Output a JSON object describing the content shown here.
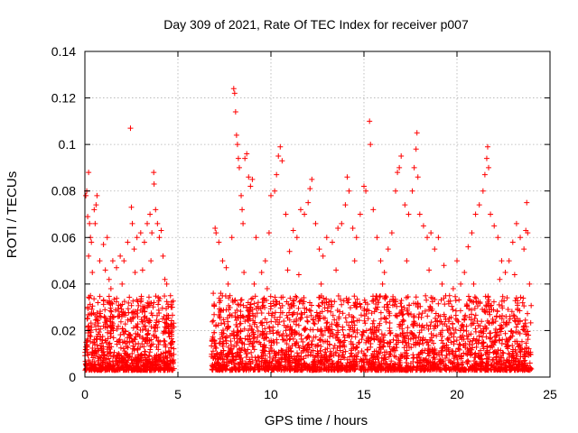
{
  "chart_data": {
    "type": "scatter",
    "title": "Day 309 of 2021, Rate Of TEC Index for receiver p007",
    "xlabel": "GPS time / hours",
    "ylabel": "ROTI / TECUs",
    "xlim": [
      0,
      25
    ],
    "ylim": [
      0,
      0.14
    ],
    "x_ticks": [
      {
        "value": 0,
        "label": "0"
      },
      {
        "value": 5,
        "label": "5"
      },
      {
        "value": 10,
        "label": "10"
      },
      {
        "value": 15,
        "label": "15"
      },
      {
        "value": 20,
        "label": "20"
      },
      {
        "value": 25,
        "label": "25"
      }
    ],
    "y_ticks": [
      {
        "value": 0,
        "label": "0"
      },
      {
        "value": 0.02,
        "label": "0.02"
      },
      {
        "value": 0.04,
        "label": "0.04"
      },
      {
        "value": 0.06,
        "label": "0.06"
      },
      {
        "value": 0.08,
        "label": "0.08"
      },
      {
        "value": 0.1,
        "label": "0.1"
      },
      {
        "value": 0.12,
        "label": "0.12"
      },
      {
        "value": 0.14,
        "label": "0.14"
      }
    ],
    "grid": true,
    "marker": "plus",
    "color": "#ff0000",
    "series": [
      {
        "points": [
          [
            0.05,
            0.078
          ],
          [
            0.1,
            0.08
          ],
          [
            0.15,
            0.069
          ],
          [
            0.2,
            0.088
          ],
          [
            0.25,
            0.066
          ],
          [
            0.3,
            0.06
          ],
          [
            0.2,
            0.052
          ],
          [
            0.35,
            0.058
          ],
          [
            0.5,
            0.072
          ],
          [
            0.55,
            0.066
          ],
          [
            0.6,
            0.074
          ],
          [
            0.65,
            0.078
          ],
          [
            0.4,
            0.045
          ],
          [
            0.8,
            0.05
          ],
          [
            1.0,
            0.057
          ],
          [
            1.2,
            0.06
          ],
          [
            1.1,
            0.046
          ],
          [
            1.5,
            0.05
          ],
          [
            1.3,
            0.042
          ],
          [
            1.7,
            0.047
          ],
          [
            1.9,
            0.052
          ],
          [
            2.1,
            0.05
          ],
          [
            2.3,
            0.058
          ],
          [
            2.45,
            0.107
          ],
          [
            2.5,
            0.073
          ],
          [
            2.55,
            0.066
          ],
          [
            2.65,
            0.055
          ],
          [
            2.8,
            0.06
          ],
          [
            3.0,
            0.062
          ],
          [
            3.2,
            0.058
          ],
          [
            3.35,
            0.066
          ],
          [
            3.5,
            0.07
          ],
          [
            3.6,
            0.062
          ],
          [
            3.7,
            0.088
          ],
          [
            3.72,
            0.083
          ],
          [
            3.8,
            0.072
          ],
          [
            3.9,
            0.066
          ],
          [
            4.0,
            0.06
          ],
          [
            4.1,
            0.063
          ],
          [
            4.2,
            0.052
          ],
          [
            4.4,
            0.04
          ],
          [
            4.6,
            0.035
          ],
          [
            0.3,
            0.035
          ],
          [
            0.7,
            0.032
          ],
          [
            1.4,
            0.038
          ],
          [
            2.0,
            0.04
          ],
          [
            2.7,
            0.045
          ],
          [
            3.1,
            0.046
          ],
          [
            3.55,
            0.05
          ],
          [
            4.3,
            0.042
          ],
          [
            4.7,
            0.03
          ],
          [
            6.9,
            0.036
          ],
          [
            7.0,
            0.064
          ],
          [
            7.05,
            0.062
          ],
          [
            7.2,
            0.058
          ],
          [
            7.4,
            0.05
          ],
          [
            7.6,
            0.047
          ],
          [
            7.7,
            0.04
          ],
          [
            7.9,
            0.06
          ],
          [
            8.0,
            0.124
          ],
          [
            8.05,
            0.122
          ],
          [
            8.1,
            0.114
          ],
          [
            8.15,
            0.104
          ],
          [
            8.2,
            0.1
          ],
          [
            8.25,
            0.094
          ],
          [
            8.3,
            0.09
          ],
          [
            8.4,
            0.078
          ],
          [
            8.45,
            0.072
          ],
          [
            8.5,
            0.066
          ],
          [
            8.6,
            0.094
          ],
          [
            8.7,
            0.096
          ],
          [
            8.8,
            0.086
          ],
          [
            8.9,
            0.082
          ],
          [
            9.0,
            0.085
          ],
          [
            9.2,
            0.06
          ],
          [
            9.5,
            0.045
          ],
          [
            9.7,
            0.05
          ],
          [
            9.9,
            0.062
          ],
          [
            10.0,
            0.078
          ],
          [
            10.2,
            0.08
          ],
          [
            10.3,
            0.087
          ],
          [
            10.4,
            0.095
          ],
          [
            10.5,
            0.099
          ],
          [
            10.6,
            0.093
          ],
          [
            10.8,
            0.07
          ],
          [
            11.0,
            0.054
          ],
          [
            11.2,
            0.063
          ],
          [
            11.4,
            0.06
          ],
          [
            11.6,
            0.072
          ],
          [
            11.8,
            0.07
          ],
          [
            12.0,
            0.075
          ],
          [
            12.1,
            0.081
          ],
          [
            12.2,
            0.085
          ],
          [
            12.4,
            0.066
          ],
          [
            12.6,
            0.055
          ],
          [
            12.8,
            0.052
          ],
          [
            13.0,
            0.06
          ],
          [
            13.3,
            0.058
          ],
          [
            13.6,
            0.064
          ],
          [
            13.8,
            0.066
          ],
          [
            14.0,
            0.074
          ],
          [
            14.1,
            0.086
          ],
          [
            14.2,
            0.08
          ],
          [
            14.4,
            0.064
          ],
          [
            14.6,
            0.06
          ],
          [
            14.8,
            0.07
          ],
          [
            15.0,
            0.082
          ],
          [
            15.1,
            0.08
          ],
          [
            15.3,
            0.11
          ],
          [
            15.35,
            0.1
          ],
          [
            15.5,
            0.072
          ],
          [
            15.7,
            0.06
          ],
          [
            15.9,
            0.05
          ],
          [
            16.1,
            0.045
          ],
          [
            16.3,
            0.055
          ],
          [
            16.5,
            0.062
          ],
          [
            16.7,
            0.08
          ],
          [
            16.8,
            0.088
          ],
          [
            16.9,
            0.09
          ],
          [
            17.0,
            0.095
          ],
          [
            17.2,
            0.074
          ],
          [
            17.4,
            0.07
          ],
          [
            17.6,
            0.08
          ],
          [
            17.7,
            0.09
          ],
          [
            17.8,
            0.098
          ],
          [
            17.85,
            0.105
          ],
          [
            17.9,
            0.086
          ],
          [
            18.0,
            0.07
          ],
          [
            18.2,
            0.065
          ],
          [
            18.4,
            0.06
          ],
          [
            18.6,
            0.062
          ],
          [
            18.8,
            0.055
          ],
          [
            19.0,
            0.06
          ],
          [
            19.3,
            0.048
          ],
          [
            19.6,
            0.035
          ],
          [
            19.8,
            0.038
          ],
          [
            20.0,
            0.05
          ],
          [
            20.2,
            0.04
          ],
          [
            20.4,
            0.045
          ],
          [
            20.6,
            0.056
          ],
          [
            20.8,
            0.062
          ],
          [
            21.0,
            0.07
          ],
          [
            21.2,
            0.074
          ],
          [
            21.4,
            0.08
          ],
          [
            21.5,
            0.087
          ],
          [
            21.6,
            0.094
          ],
          [
            21.65,
            0.099
          ],
          [
            21.7,
            0.09
          ],
          [
            21.8,
            0.07
          ],
          [
            22.0,
            0.065
          ],
          [
            22.2,
            0.06
          ],
          [
            22.4,
            0.05
          ],
          [
            22.6,
            0.045
          ],
          [
            22.8,
            0.05
          ],
          [
            23.0,
            0.058
          ],
          [
            23.2,
            0.066
          ],
          [
            23.4,
            0.06
          ],
          [
            23.6,
            0.055
          ],
          [
            23.7,
            0.063
          ],
          [
            23.75,
            0.075
          ],
          [
            23.8,
            0.062
          ],
          [
            23.9,
            0.04
          ],
          [
            7.3,
            0.036
          ],
          [
            7.8,
            0.035
          ],
          [
            8.55,
            0.045
          ],
          [
            9.1,
            0.04
          ],
          [
            9.8,
            0.038
          ],
          [
            10.9,
            0.046
          ],
          [
            11.5,
            0.044
          ],
          [
            12.7,
            0.04
          ],
          [
            13.5,
            0.046
          ],
          [
            14.5,
            0.05
          ],
          [
            16.0,
            0.04
          ],
          [
            17.3,
            0.05
          ],
          [
            18.5,
            0.046
          ],
          [
            19.2,
            0.04
          ],
          [
            20.9,
            0.04
          ],
          [
            22.3,
            0.042
          ],
          [
            23.1,
            0.044
          ]
        ]
      }
    ],
    "dense_bands": [
      {
        "x_range": [
          0,
          4.8
        ],
        "y_range": [
          0.003,
          0.035
        ],
        "count": 900
      },
      {
        "x_range": [
          6.8,
          24.0
        ],
        "y_range": [
          0.003,
          0.035
        ],
        "count": 2600
      }
    ]
  }
}
